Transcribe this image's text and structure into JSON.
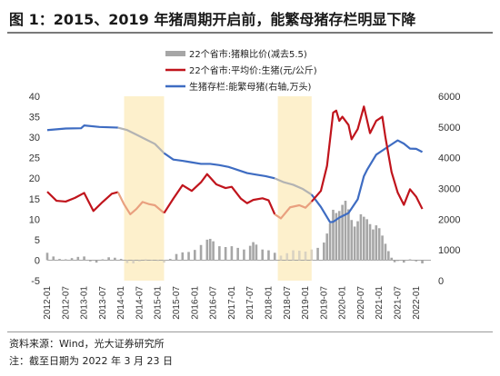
{
  "title": "图 1：2015、2019 年猪周期开启前，能繁母猪存栏明显下降",
  "source": "资料来源：Wind，光大证券研究所",
  "note": "注：截至日期为 2022 年 3 月 23 日",
  "colors": {
    "ratio": "#a6a6a6",
    "price": "#c0141c",
    "sows": "#3e6cc2",
    "sows_faded": "#b3b3b3",
    "price_faded": "#e9a07f",
    "shade": "#fdf0cc"
  },
  "chart_data": {
    "type": "bar+line",
    "legend": [
      "22个省市:猪粮比价(减去5.5)",
      "22个省市:平均价:生猪(元/公斤)",
      "生猪存栏:能繁母猪(右轴,万头)"
    ],
    "legend_position": "top-center",
    "y_left": {
      "min": -5,
      "max": 40,
      "ticks": [
        "-5",
        "0",
        "5",
        "10",
        "15",
        "20",
        "25",
        "30",
        "35",
        "40"
      ]
    },
    "y_right": {
      "min": 0,
      "max": 6000,
      "ticks": [
        "0",
        "1000",
        "2000",
        "3000",
        "4000",
        "5000",
        "6000"
      ]
    },
    "x_labels": [
      "2012-01",
      "2012-07",
      "2013-01",
      "2013-07",
      "2014-01",
      "2014-07",
      "2015-01",
      "2015-07",
      "2016-01",
      "2016-07",
      "2017-01",
      "2017-07",
      "2018-01",
      "2018-07",
      "2019-01",
      "2019-07",
      "2020-01",
      "2020-07",
      "2021-01",
      "2021-07",
      "2022-01"
    ],
    "shaded_periods": [
      {
        "start": "2014-02",
        "end": "2015-03"
      },
      {
        "start": "2018-04",
        "end": "2019-03"
      }
    ],
    "series": [
      {
        "name": "22个省市:猪粮比价(减去5.5)",
        "type": "bar",
        "axis": "left",
        "points": [
          [
            "2012-01",
            1.8
          ],
          [
            "2012-03",
            0.9
          ],
          [
            "2012-05",
            0.3
          ],
          [
            "2012-07",
            0.2
          ],
          [
            "2012-09",
            0.5
          ],
          [
            "2012-11",
            0.8
          ],
          [
            "2013-01",
            0.9
          ],
          [
            "2013-03",
            -0.3
          ],
          [
            "2013-05",
            -0.6
          ],
          [
            "2013-07",
            0.2
          ],
          [
            "2013-09",
            0.7
          ],
          [
            "2013-11",
            0.6
          ],
          [
            "2014-01",
            0.3
          ],
          [
            "2014-03",
            -0.7
          ],
          [
            "2014-05",
            -0.8
          ],
          [
            "2014-07",
            -0.3
          ],
          [
            "2014-09",
            0.2
          ],
          [
            "2014-11",
            -0.1
          ],
          [
            "2015-01",
            -0.2
          ],
          [
            "2015-03",
            -0.6
          ],
          [
            "2015-05",
            0.3
          ],
          [
            "2015-07",
            1.5
          ],
          [
            "2015-09",
            1.9
          ],
          [
            "2015-11",
            2.0
          ],
          [
            "2016-01",
            2.5
          ],
          [
            "2016-03",
            3.7
          ],
          [
            "2016-05",
            5.0
          ],
          [
            "2016-06",
            5.2
          ],
          [
            "2016-07",
            4.6
          ],
          [
            "2016-09",
            3.4
          ],
          [
            "2016-11",
            3.2
          ],
          [
            "2017-01",
            3.4
          ],
          [
            "2017-03",
            3.0
          ],
          [
            "2017-05",
            2.6
          ],
          [
            "2017-07",
            3.5
          ],
          [
            "2017-08",
            4.4
          ],
          [
            "2017-09",
            3.8
          ],
          [
            "2017-11",
            2.6
          ],
          [
            "2018-01",
            2.4
          ],
          [
            "2018-03",
            1.8
          ],
          [
            "2018-05",
            1.1
          ],
          [
            "2018-07",
            1.7
          ],
          [
            "2018-09",
            2.4
          ],
          [
            "2018-11",
            2.3
          ],
          [
            "2019-01",
            2.1
          ],
          [
            "2019-03",
            2.6
          ],
          [
            "2019-05",
            3.0
          ],
          [
            "2019-07",
            4.3
          ],
          [
            "2019-08",
            6.5
          ],
          [
            "2019-09",
            9.0
          ],
          [
            "2019-10",
            12.3
          ],
          [
            "2019-11",
            11.5
          ],
          [
            "2019-12",
            12.0
          ],
          [
            "2020-01",
            13.5
          ],
          [
            "2020-02",
            14.5
          ],
          [
            "2020-03",
            12.4
          ],
          [
            "2020-04",
            9.8
          ],
          [
            "2020-05",
            8.2
          ],
          [
            "2020-06",
            9.5
          ],
          [
            "2020-07",
            11.2
          ],
          [
            "2020-08",
            10.6
          ],
          [
            "2020-09",
            10.0
          ],
          [
            "2020-10",
            8.8
          ],
          [
            "2020-11",
            7.5
          ],
          [
            "2020-12",
            8.5
          ],
          [
            "2021-01",
            7.8
          ],
          [
            "2021-02",
            6.0
          ],
          [
            "2021-03",
            4.0
          ],
          [
            "2021-04",
            2.2
          ],
          [
            "2021-05",
            0.6
          ],
          [
            "2021-06",
            -0.5
          ],
          [
            "2021-07",
            -0.2
          ],
          [
            "2021-09",
            -0.6
          ],
          [
            "2021-11",
            0.2
          ],
          [
            "2022-01",
            -0.3
          ],
          [
            "2022-03",
            -0.8
          ]
        ]
      },
      {
        "name": "22个省市:平均价:生猪(元/公斤)",
        "type": "line",
        "axis": "left",
        "points": [
          [
            "2012-01",
            16.7
          ],
          [
            "2012-04",
            14.5
          ],
          [
            "2012-07",
            14.3
          ],
          [
            "2012-10",
            15.2
          ],
          [
            "2013-01",
            16.4
          ],
          [
            "2013-04",
            12.0
          ],
          [
            "2013-07",
            14.2
          ],
          [
            "2013-10",
            16.2
          ],
          [
            "2013-12",
            16.6
          ],
          [
            "2014-02",
            13.6
          ],
          [
            "2014-04",
            11.2
          ],
          [
            "2014-06",
            12.5
          ],
          [
            "2014-08",
            14.2
          ],
          [
            "2014-10",
            13.7
          ],
          [
            "2014-12",
            13.4
          ],
          [
            "2015-03",
            11.5
          ],
          [
            "2015-06",
            15.0
          ],
          [
            "2015-09",
            18.3
          ],
          [
            "2015-12",
            16.9
          ],
          [
            "2016-03",
            19.0
          ],
          [
            "2016-05",
            21.0
          ],
          [
            "2016-08",
            18.5
          ],
          [
            "2016-11",
            17.6
          ],
          [
            "2017-01",
            17.9
          ],
          [
            "2017-04",
            15.0
          ],
          [
            "2017-06",
            13.9
          ],
          [
            "2017-08",
            14.7
          ],
          [
            "2017-11",
            15.1
          ],
          [
            "2018-01",
            14.6
          ],
          [
            "2018-03",
            11.2
          ],
          [
            "2018-05",
            10.2
          ],
          [
            "2018-08",
            12.9
          ],
          [
            "2018-11",
            13.4
          ],
          [
            "2019-01",
            12.8
          ],
          [
            "2019-03",
            14.3
          ],
          [
            "2019-06",
            16.9
          ],
          [
            "2019-08",
            23.0
          ],
          [
            "2019-10",
            36.0
          ],
          [
            "2019-11",
            36.5
          ],
          [
            "2019-12",
            34.0
          ],
          [
            "2020-01",
            35.0
          ],
          [
            "2020-03",
            33.0
          ],
          [
            "2020-04",
            29.5
          ],
          [
            "2020-06",
            32.0
          ],
          [
            "2020-08",
            37.5
          ],
          [
            "2020-10",
            31.0
          ],
          [
            "2020-12",
            34.0
          ],
          [
            "2021-02",
            35.0
          ],
          [
            "2021-03",
            30.0
          ],
          [
            "2021-05",
            21.5
          ],
          [
            "2021-07",
            16.5
          ],
          [
            "2021-09",
            13.5
          ],
          [
            "2021-11",
            17.3
          ],
          [
            "2022-01",
            15.5
          ],
          [
            "2022-03",
            12.5
          ]
        ]
      },
      {
        "name": "生猪存栏:能繁母猪(右轴,万头)",
        "type": "line",
        "axis": "right",
        "points": [
          [
            "2012-01",
            4900
          ],
          [
            "2012-07",
            4950
          ],
          [
            "2012-12",
            4960
          ],
          [
            "2013-01",
            5050
          ],
          [
            "2013-06",
            5000
          ],
          [
            "2013-12",
            4980
          ],
          [
            "2014-03",
            4900
          ],
          [
            "2014-06",
            4750
          ],
          [
            "2014-09",
            4600
          ],
          [
            "2014-12",
            4450
          ],
          [
            "2015-03",
            4150
          ],
          [
            "2015-06",
            3940
          ],
          [
            "2015-09",
            3900
          ],
          [
            "2015-12",
            3850
          ],
          [
            "2016-03",
            3800
          ],
          [
            "2016-06",
            3800
          ],
          [
            "2016-09",
            3760
          ],
          [
            "2016-12",
            3700
          ],
          [
            "2017-03",
            3600
          ],
          [
            "2017-06",
            3500
          ],
          [
            "2017-09",
            3450
          ],
          [
            "2017-12",
            3400
          ],
          [
            "2018-03",
            3330
          ],
          [
            "2018-06",
            3200
          ],
          [
            "2018-09",
            3120
          ],
          [
            "2018-12",
            2990
          ],
          [
            "2019-03",
            2800
          ],
          [
            "2019-06",
            2400
          ],
          [
            "2019-09",
            1900
          ],
          [
            "2019-10",
            1913
          ],
          [
            "2019-12",
            2050
          ],
          [
            "2020-03",
            2200
          ],
          [
            "2020-06",
            2650
          ],
          [
            "2020-08",
            3400
          ],
          [
            "2020-09",
            3600
          ],
          [
            "2020-12",
            4100
          ],
          [
            "2021-03",
            4300
          ],
          [
            "2021-06",
            4500
          ],
          [
            "2021-07",
            4564
          ],
          [
            "2021-09",
            4459
          ],
          [
            "2021-11",
            4296
          ],
          [
            "2022-01",
            4290
          ],
          [
            "2022-03",
            4185
          ]
        ]
      }
    ]
  }
}
